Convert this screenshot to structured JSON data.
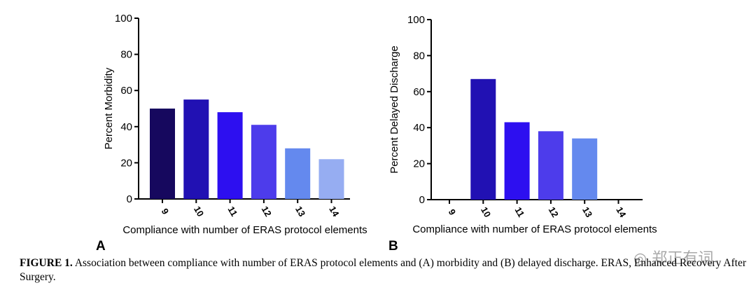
{
  "chart_data": [
    {
      "type": "bar",
      "panel": "A",
      "categories": [
        "9",
        "10",
        "11",
        "12",
        "13",
        "14"
      ],
      "values": [
        50,
        55,
        48,
        41,
        28,
        22
      ],
      "colors": [
        "#16085e",
        "#2111b3",
        "#2d0ff0",
        "#4d3ceb",
        "#6489ee",
        "#96adf2"
      ],
      "xlabel": "Compliance with number of ERAS protocol elements",
      "ylabel": "Percent Morbidity",
      "ylim": [
        0,
        100
      ],
      "yticks": [
        0,
        20,
        40,
        60,
        80,
        100
      ],
      "grid": false
    },
    {
      "type": "bar",
      "panel": "B",
      "categories": [
        "9",
        "10",
        "11",
        "12",
        "13",
        "14"
      ],
      "values": [
        0,
        67,
        43,
        38,
        34,
        0
      ],
      "colors": [
        "#16085e",
        "#2111b3",
        "#2d0ff0",
        "#4d3ceb",
        "#6489ee",
        "#96adf2"
      ],
      "xlabel": "Compliance with number of ERAS protocol elements",
      "ylabel": "Percent Delayed Discharge",
      "ylim": [
        0,
        100
      ],
      "yticks": [
        0,
        20,
        40,
        60,
        80,
        100
      ],
      "grid": false
    }
  ],
  "caption": {
    "label": "FIGURE 1.",
    "text": "Association between compliance with number of ERAS protocol elements and (A) morbidity and (B) delayed discharge. ERAS, Enhanced Recovery After Surgery."
  },
  "watermark": {
    "text": "郑正有词",
    "icon": "wechat-icon"
  }
}
